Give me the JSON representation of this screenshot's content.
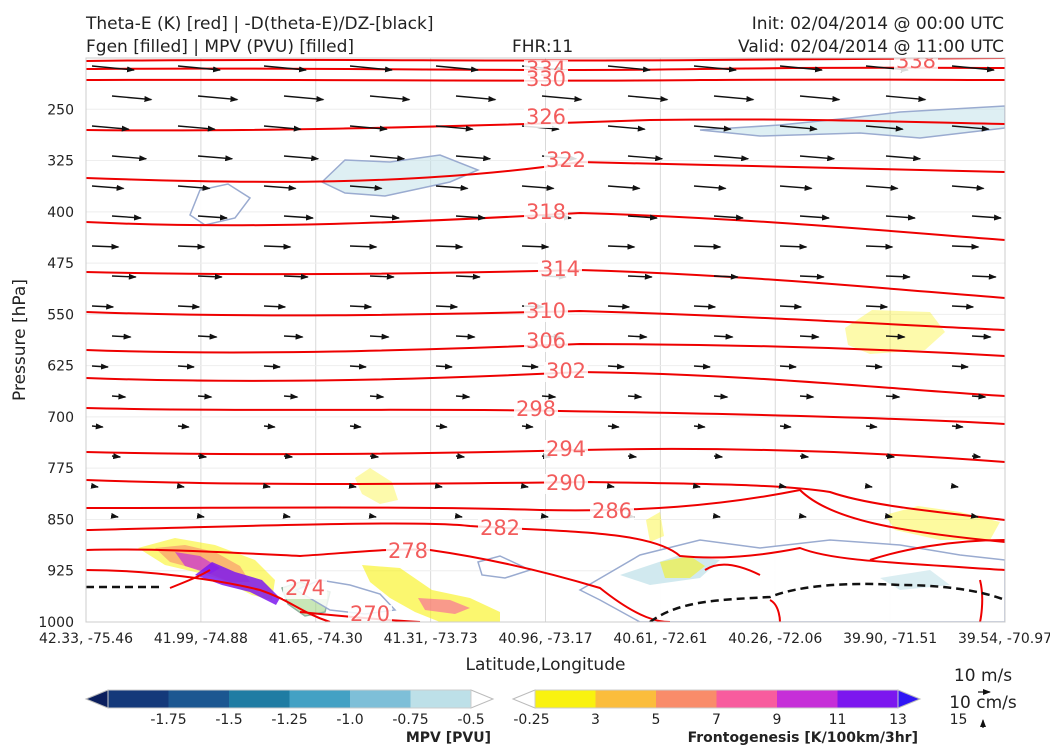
{
  "header": {
    "title_line1": "Theta-E (K) [red] | -D(theta-E)/DZ-[black]",
    "title_line2": "Fgen [filled] | MPV (PVU) [filled]",
    "fhr": "FHR:11",
    "init": "Init: 02/04/2014 @ 00:00 UTC",
    "valid": "Valid: 02/04/2014 @ 11:00 UTC"
  },
  "chart_data": {
    "type": "cross-section",
    "xlabel": "Latitude,Longitude",
    "ylabel": "Pressure [hPa]",
    "y_ticks": [
      250,
      325,
      400,
      475,
      550,
      625,
      700,
      775,
      850,
      925,
      1000
    ],
    "ylim": [
      1000,
      175
    ],
    "x_ticks": [
      "42.33, -75.46",
      "41.99, -74.88",
      "41.65, -74.30",
      "41.31, -73.73",
      "40.96, -73.17",
      "40.61, -72.61",
      "40.26, -72.06",
      "39.90, -71.51",
      "39.54, -70.97"
    ],
    "theta_e_labels": [
      "338",
      "334",
      "330",
      "326",
      "322",
      "318",
      "314",
      "310",
      "306",
      "302",
      "298",
      "294",
      "290",
      "286",
      "282",
      "278",
      "274",
      "270"
    ],
    "theta_e_line_color": "#ee0000",
    "theta_e_label_color": "#f25c5c",
    "wind_vector_color": "#111111",
    "mpv_colorbar": {
      "label": "MPV [PVU]",
      "ticks": [
        "-1.75",
        "-1.5",
        "-1.25",
        "-1.0",
        "-0.75",
        "-0.5",
        "-0.25"
      ],
      "colors": [
        "#0b1f5e",
        "#14397a",
        "#1c5791",
        "#1f7ca3",
        "#43a1c4",
        "#7ebfd8",
        "#bde0e8",
        "#ffffff"
      ]
    },
    "fgen_colorbar": {
      "label": "Frontogenesis [K/100km/3hr]",
      "ticks": [
        "3",
        "5",
        "7",
        "9",
        "11",
        "13",
        "15"
      ],
      "colors": [
        "#ffffff",
        "#f9f20f",
        "#fbbd3c",
        "#f98c6a",
        "#f85c9e",
        "#c62fd8",
        "#7c17ef",
        "#3016f5"
      ]
    },
    "vector_key": {
      "horizontal": "10 m/s",
      "vertical": "10 cm/s"
    }
  }
}
